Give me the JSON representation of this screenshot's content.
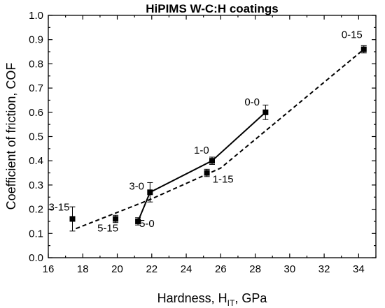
{
  "chart_data": {
    "type": "scatter",
    "title": "HiPIMS W-C:H coatings",
    "xlabel": {
      "main": "Hardness, H",
      "sub": "IT",
      "tail": ", GPa"
    },
    "ylabel": "Coefficient of friction, COF",
    "xlim": [
      16,
      35
    ],
    "ylim": [
      0.0,
      1.0
    ],
    "x_ticks": [
      "16",
      "18",
      "20",
      "22",
      "24",
      "26",
      "28",
      "30",
      "32",
      "34"
    ],
    "y_ticks": [
      "0.0",
      "0.1",
      "0.2",
      "0.3",
      "0.4",
      "0.5",
      "0.6",
      "0.7",
      "0.8",
      "0.9",
      "1.0"
    ],
    "grid": false,
    "legend": "none",
    "points": [
      {
        "label": "3-15",
        "x": 17.4,
        "y": 0.16,
        "err": 0.05
      },
      {
        "label": "5-15",
        "x": 19.9,
        "y": 0.16,
        "err": 0.015
      },
      {
        "label": "5-0",
        "x": 21.2,
        "y": 0.15,
        "err": 0.015
      },
      {
        "label": "3-0",
        "x": 21.9,
        "y": 0.27,
        "err": 0.04
      },
      {
        "label": "1-15",
        "x": 25.2,
        "y": 0.35,
        "err": 0.015
      },
      {
        "label": "1-0",
        "x": 25.5,
        "y": 0.4,
        "err": 0.015
      },
      {
        "label": "0-0",
        "x": 28.6,
        "y": 0.6,
        "err": 0.03
      },
      {
        "label": "0-15",
        "x": 34.3,
        "y": 0.86,
        "err": 0.015
      }
    ],
    "lines": [
      {
        "style": "solid",
        "x": [
          21.2,
          21.9,
          25.5,
          28.6
        ],
        "y": [
          0.15,
          0.27,
          0.4,
          0.6
        ]
      },
      {
        "style": "dashed",
        "x": [
          17.6,
          21.9,
          26.0,
          34.3
        ],
        "y": [
          0.12,
          0.24,
          0.37,
          0.86
        ]
      }
    ],
    "colors": {
      "marker": "#000000",
      "line": "#000000"
    }
  }
}
